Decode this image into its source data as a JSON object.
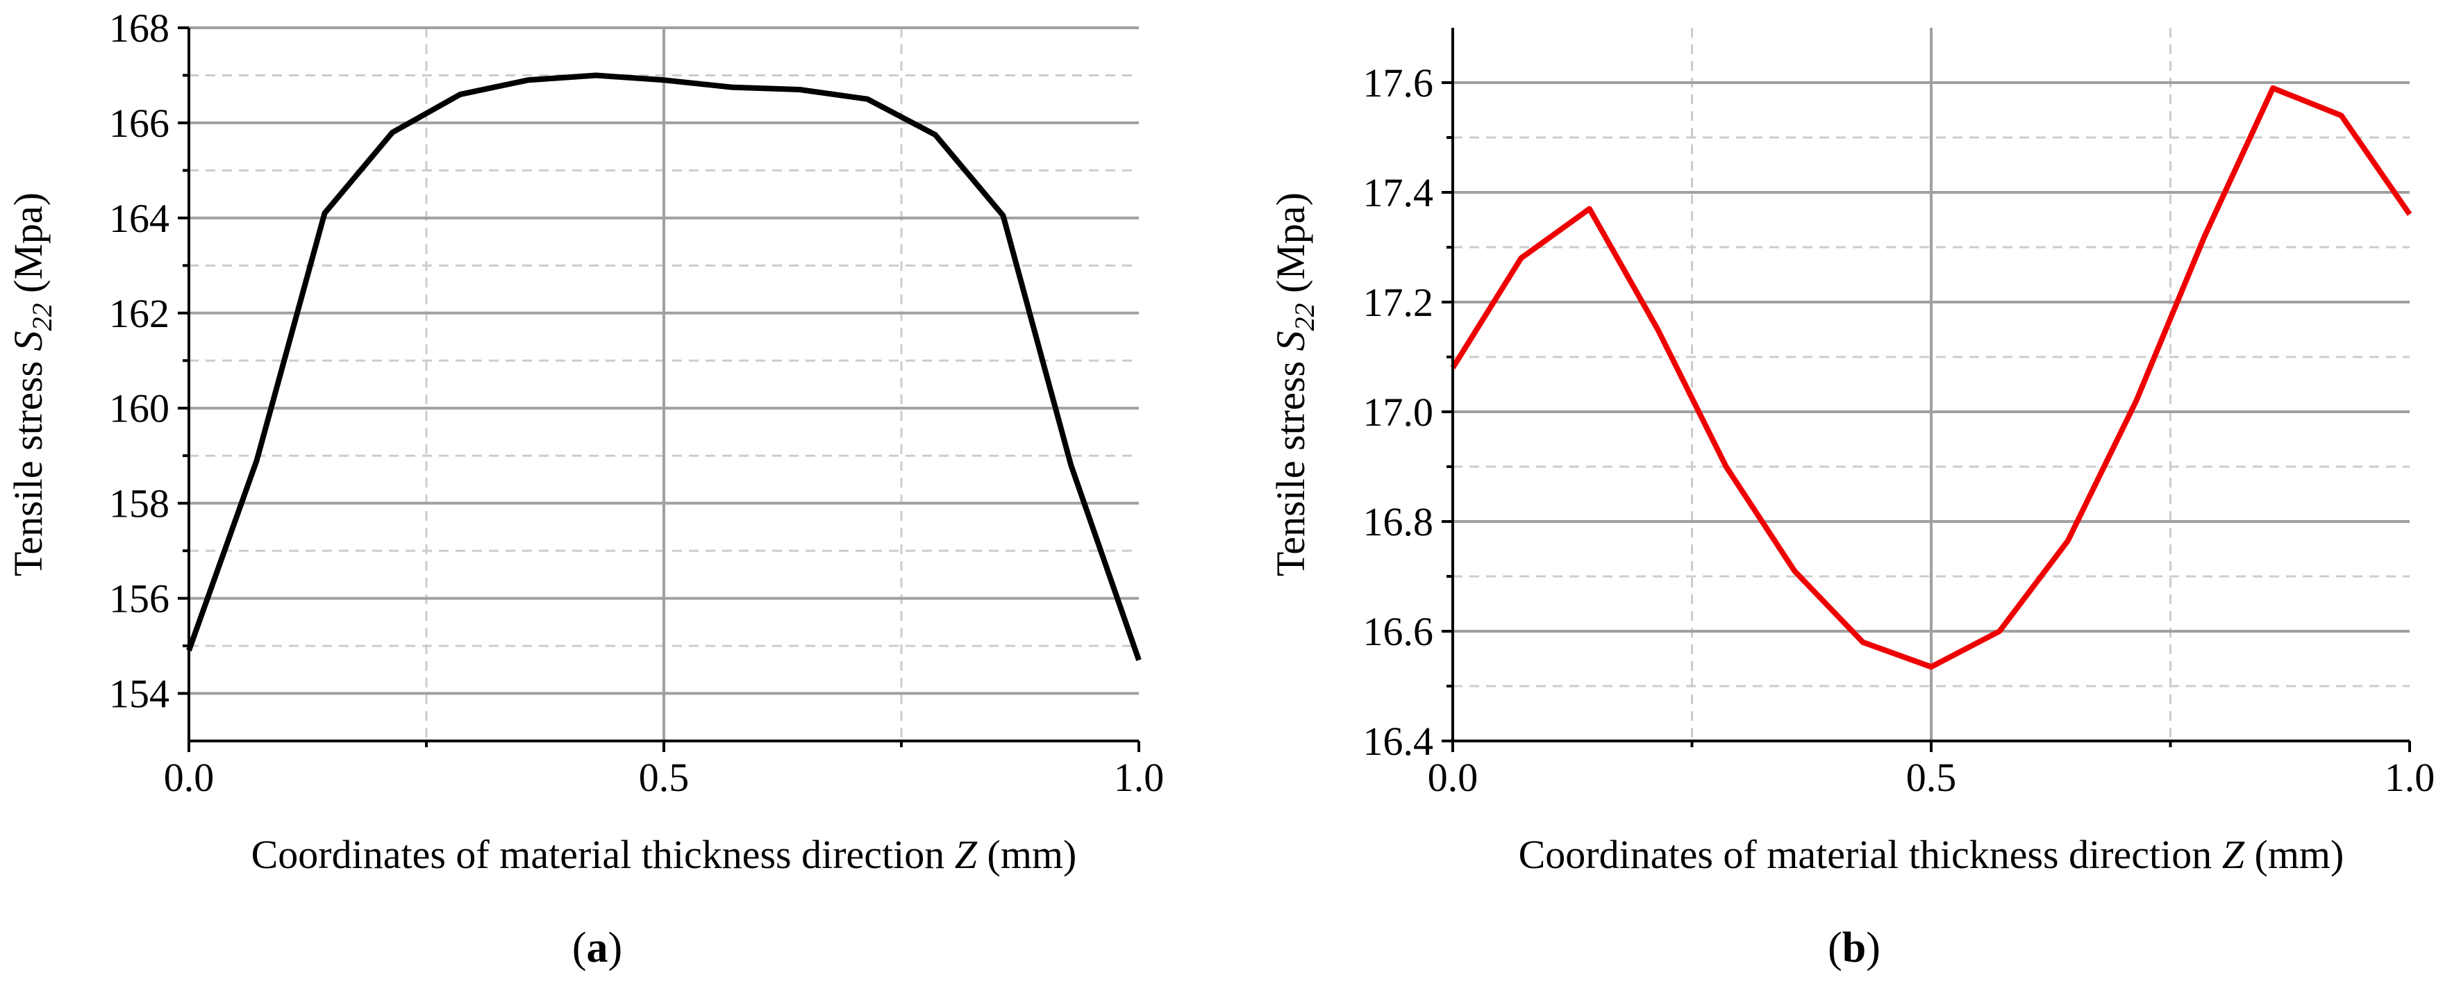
{
  "chart_data": [
    {
      "type": "line",
      "panel_label": "a",
      "title": "",
      "xlabel_prefix": "Coordinates of material thickness direction ",
      "xlabel_var": "Z",
      "xlabel_unit": " (mm)",
      "ylabel_prefix": "Tensile stress ",
      "ylabel_var": "S",
      "ylabel_sub": "22",
      "ylabel_unit": " (Mpa)",
      "xlim": [
        0,
        1
      ],
      "ylim": [
        153,
        168
      ],
      "xticks": [
        0,
        0.5,
        1
      ],
      "xtick_labels": [
        "0.0",
        "0.5",
        "1.0"
      ],
      "yticks": [
        154,
        156,
        158,
        160,
        162,
        164,
        166,
        168
      ],
      "ytick_labels": [
        "154",
        "156",
        "158",
        "160",
        "162",
        "164",
        "166",
        "168"
      ],
      "grid": true,
      "series": [
        {
          "name": "S22",
          "color": "#000000",
          "x": [
            0,
            0.0714,
            0.1429,
            0.2143,
            0.2857,
            0.3571,
            0.4286,
            0.5,
            0.5714,
            0.6429,
            0.7143,
            0.7857,
            0.8571,
            0.9286,
            1.0
          ],
          "y": [
            154.9,
            158.9,
            164.1,
            165.8,
            166.6,
            166.9,
            167.0,
            166.9,
            166.75,
            166.7,
            166.5,
            165.75,
            164.05,
            158.8,
            154.7
          ]
        }
      ]
    },
    {
      "type": "line",
      "panel_label": "b",
      "title": "",
      "xlabel_prefix": "Coordinates of material thickness direction ",
      "xlabel_var": "Z",
      "xlabel_unit": " (mm)",
      "ylabel_prefix": "Tensile stress ",
      "ylabel_var": "S",
      "ylabel_sub": "22",
      "ylabel_unit": " (Mpa)",
      "xlim": [
        0,
        1
      ],
      "ylim": [
        16.4,
        17.7
      ],
      "xticks": [
        0,
        0.5,
        1
      ],
      "xtick_labels": [
        "0.0",
        "0.5",
        "1.0"
      ],
      "yticks": [
        16.4,
        16.6,
        16.8,
        17.0,
        17.2,
        17.4,
        17.6
      ],
      "ytick_labels": [
        "16.4",
        "16.6",
        "16.8",
        "17.0",
        "17.2",
        "17.4",
        "17.6"
      ],
      "grid": true,
      "series": [
        {
          "name": "S22",
          "color": "#ee0000",
          "x": [
            0,
            0.0714,
            0.1429,
            0.2143,
            0.2857,
            0.3571,
            0.4286,
            0.5,
            0.5714,
            0.6429,
            0.7143,
            0.7857,
            0.8571,
            0.9286,
            1.0
          ],
          "y": [
            17.08,
            17.28,
            17.37,
            17.15,
            16.9,
            16.71,
            16.58,
            16.535,
            16.6,
            16.765,
            17.02,
            17.32,
            17.59,
            17.54,
            17.36
          ]
        }
      ]
    }
  ]
}
